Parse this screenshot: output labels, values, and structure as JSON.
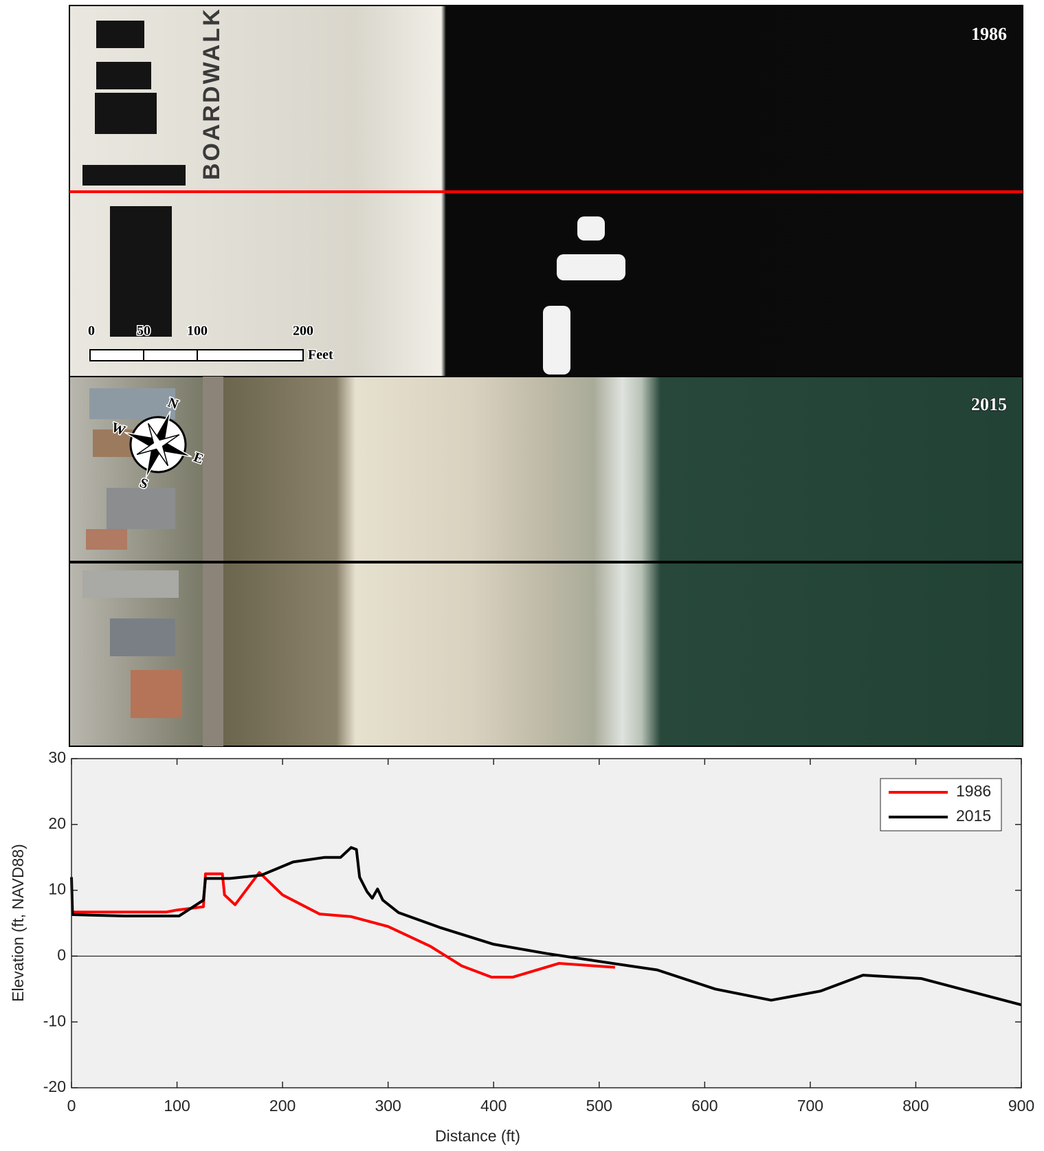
{
  "photos": {
    "year_top": "1986",
    "year_bottom": "2015",
    "street": "BOARDWALK",
    "scale_labels": [
      "0",
      "50",
      "100",
      "200"
    ],
    "scale_unit": "Feet",
    "compass": {
      "n": "N",
      "e": "E",
      "s": "S",
      "w": "W"
    }
  },
  "chart_data": {
    "type": "line",
    "xlabel": "Distance (ft)",
    "ylabel": "Elevation (ft, NAVD88)",
    "xlim": [
      0,
      900
    ],
    "ylim": [
      -20,
      30
    ],
    "xticks": [
      0,
      100,
      200,
      300,
      400,
      500,
      600,
      700,
      800,
      900
    ],
    "yticks": [
      -20,
      -10,
      0,
      10,
      20,
      30
    ],
    "grid": false,
    "zero_line": true,
    "legend": "upper-right",
    "background": "#f0f0f0",
    "series": [
      {
        "name": "1986",
        "color": "#ff0000",
        "x": [
          0,
          90,
          100,
          125,
          127,
          143,
          145,
          155,
          178,
          200,
          235,
          265,
          300,
          340,
          370,
          398,
          418,
          462,
          515
        ],
        "values": [
          6.7,
          6.7,
          7,
          7.5,
          12.5,
          12.5,
          9.3,
          7.8,
          12.7,
          9.3,
          6.4,
          6,
          4.5,
          1.5,
          -1.5,
          -3.2,
          -3.2,
          -1.1,
          -1.7
        ]
      },
      {
        "name": "2015",
        "color": "#000000",
        "x": [
          0,
          1,
          50,
          102,
          125,
          127,
          150,
          180,
          210,
          240,
          255,
          265,
          270,
          273,
          280,
          285,
          290,
          295,
          310,
          350,
          400,
          450,
          500,
          555,
          610,
          663,
          710,
          750,
          805,
          900
        ],
        "values": [
          12,
          6.3,
          6.1,
          6.1,
          8.5,
          11.8,
          11.8,
          12.3,
          14.3,
          15,
          15,
          16.5,
          16.2,
          12,
          9.8,
          8.8,
          10.2,
          8.5,
          6.6,
          4.3,
          1.8,
          0.4,
          -0.8,
          -2.1,
          -5,
          -6.7,
          -5.3,
          -2.9,
          -3.4,
          -7.4
        ]
      }
    ]
  }
}
